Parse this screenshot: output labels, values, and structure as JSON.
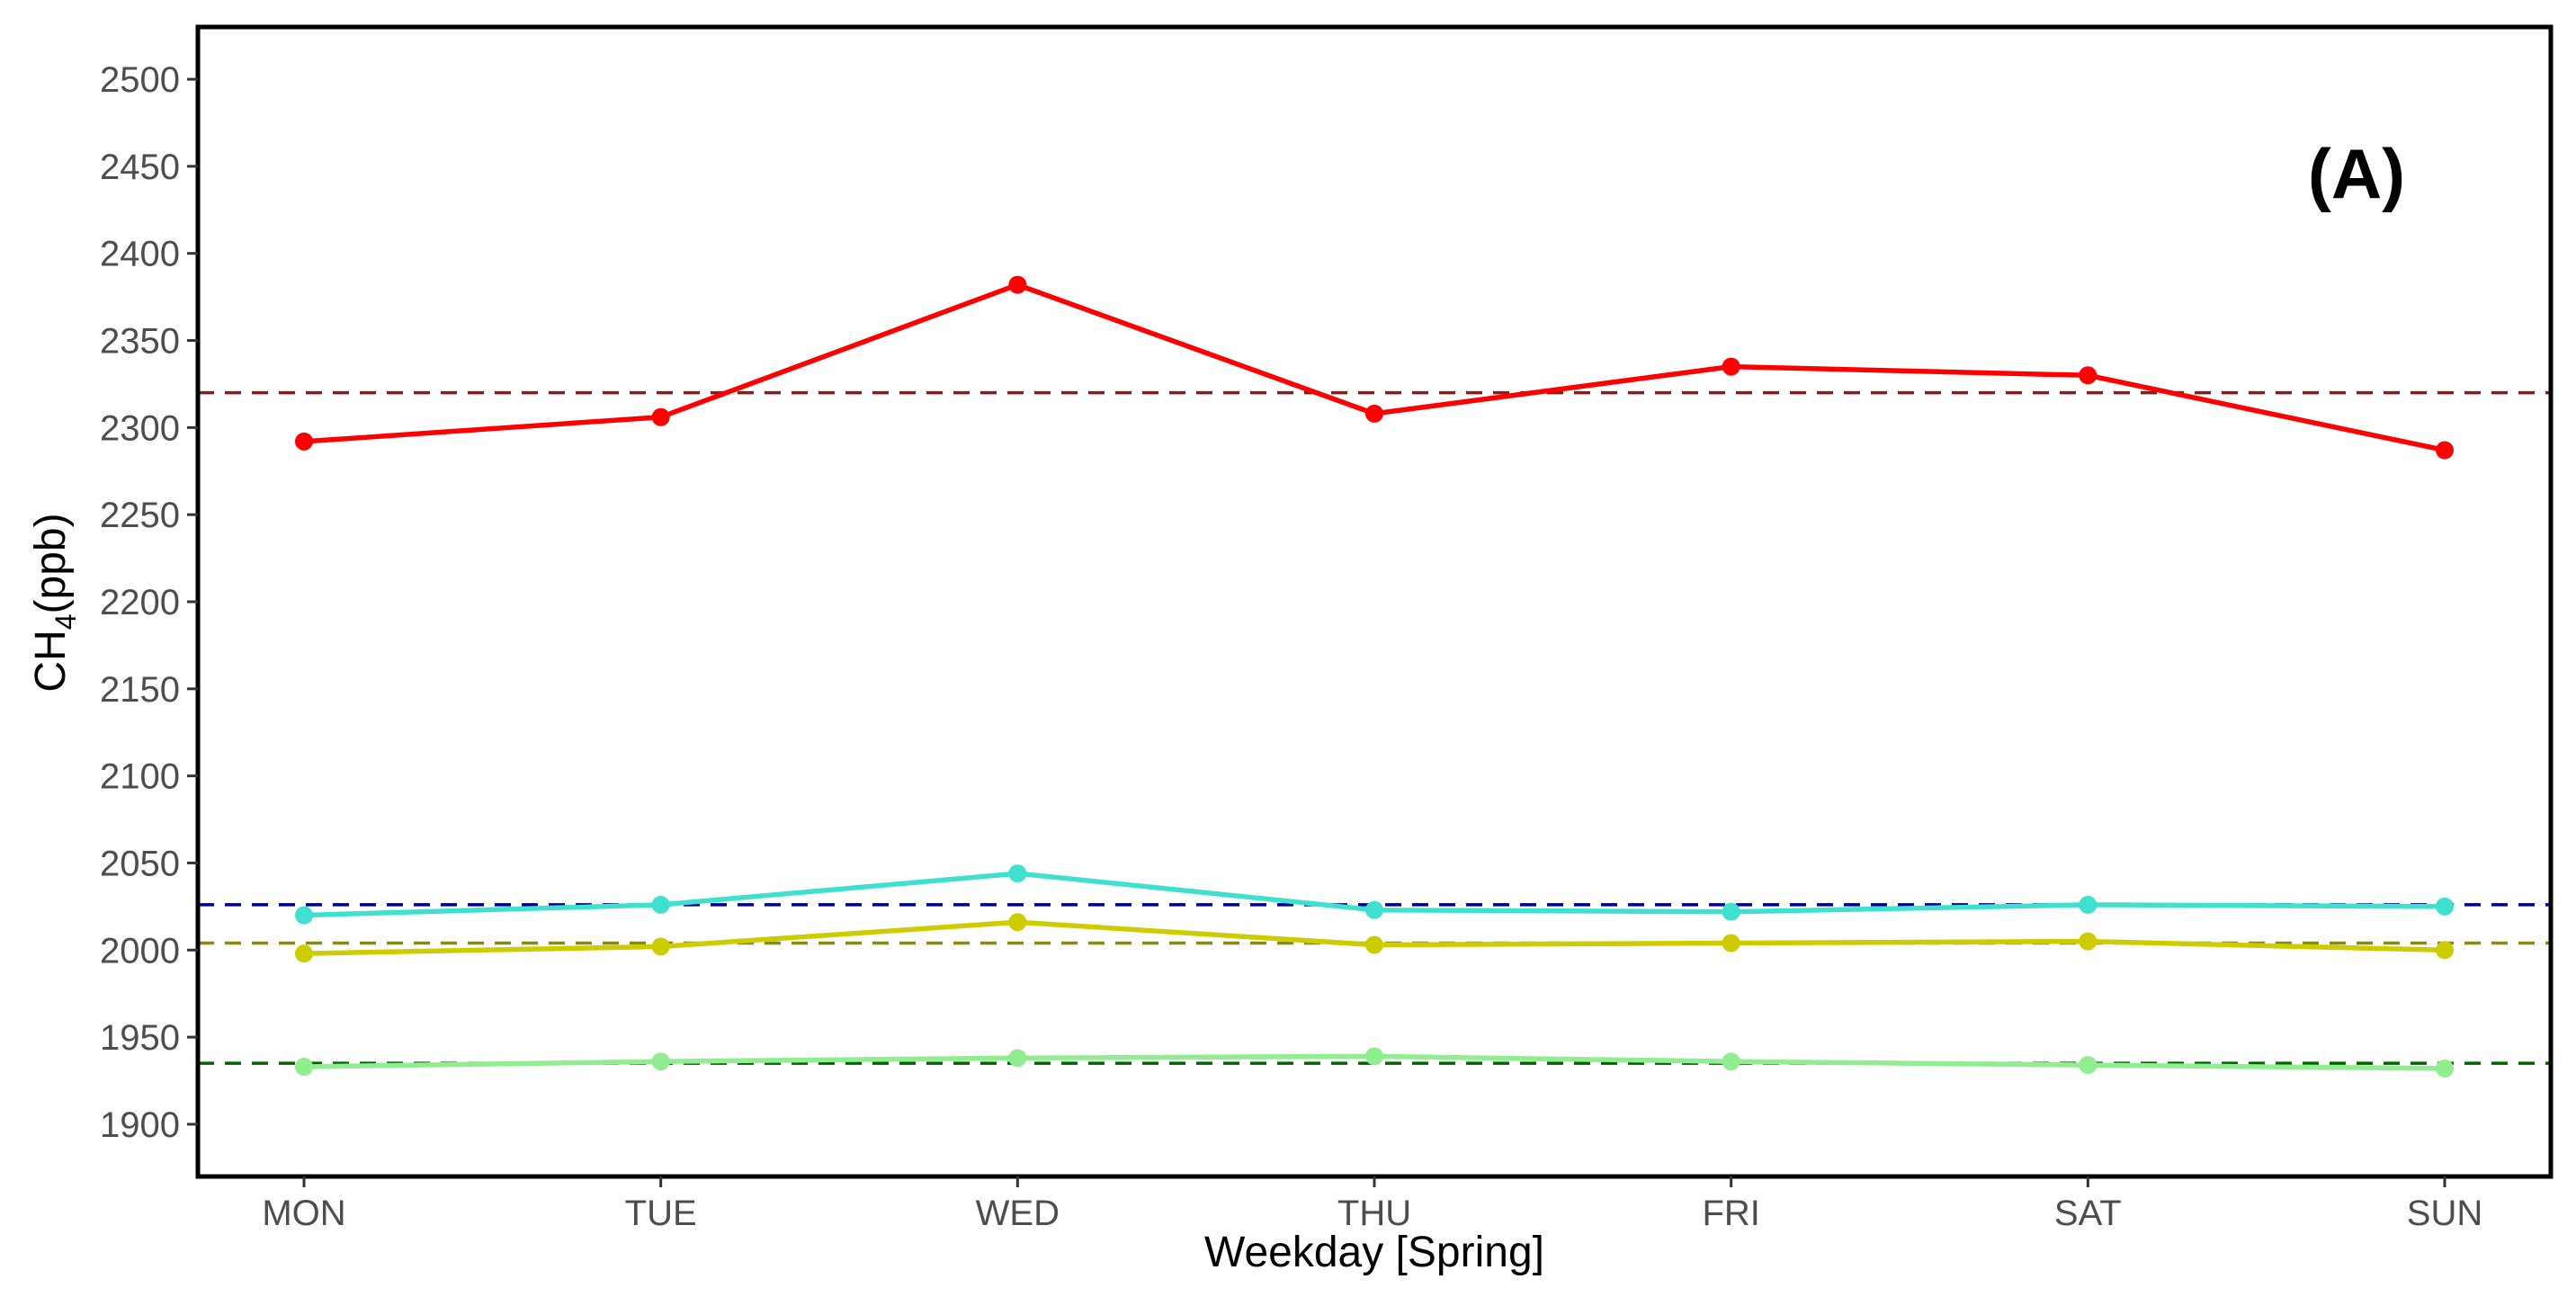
{
  "chart_data": {
    "type": "line",
    "panel_label": "(A)",
    "xlabel": "Weekday [Spring]",
    "ylabel": {
      "main": "CH",
      "sub": "4",
      "unit": "(ppb)"
    },
    "categories": [
      "MON",
      "TUE",
      "WED",
      "THU",
      "FRI",
      "SAT",
      "SUN"
    ],
    "ylim": [
      1870,
      2530
    ],
    "yticks": [
      1900,
      1950,
      2000,
      2050,
      2100,
      2150,
      2200,
      2250,
      2300,
      2350,
      2400,
      2450,
      2500
    ],
    "grid": false,
    "legend": "none",
    "series": [
      {
        "color": "#ff0000",
        "values": [
          2292,
          2306,
          2382,
          2308,
          2335,
          2330,
          2287
        ]
      },
      {
        "color": "#40e0d0",
        "values": [
          2020,
          2026,
          2044,
          2023,
          2022,
          2026,
          2025
        ]
      },
      {
        "color": "#cccc00",
        "values": [
          1998,
          2002,
          2016,
          2003,
          2004,
          2005,
          2000
        ]
      },
      {
        "color": "#90ee90",
        "values": [
          1933,
          1936,
          1938,
          1939,
          1936,
          1934,
          1932
        ]
      }
    ],
    "reference_lines": [
      {
        "y": 2320,
        "color": "#8b1a1a",
        "style": "dashed"
      },
      {
        "y": 2026,
        "color": "#00008b",
        "style": "dashed"
      },
      {
        "y": 2004,
        "color": "#8b8b00",
        "style": "dashed"
      },
      {
        "y": 1935,
        "color": "#006400",
        "style": "dashed"
      }
    ]
  }
}
